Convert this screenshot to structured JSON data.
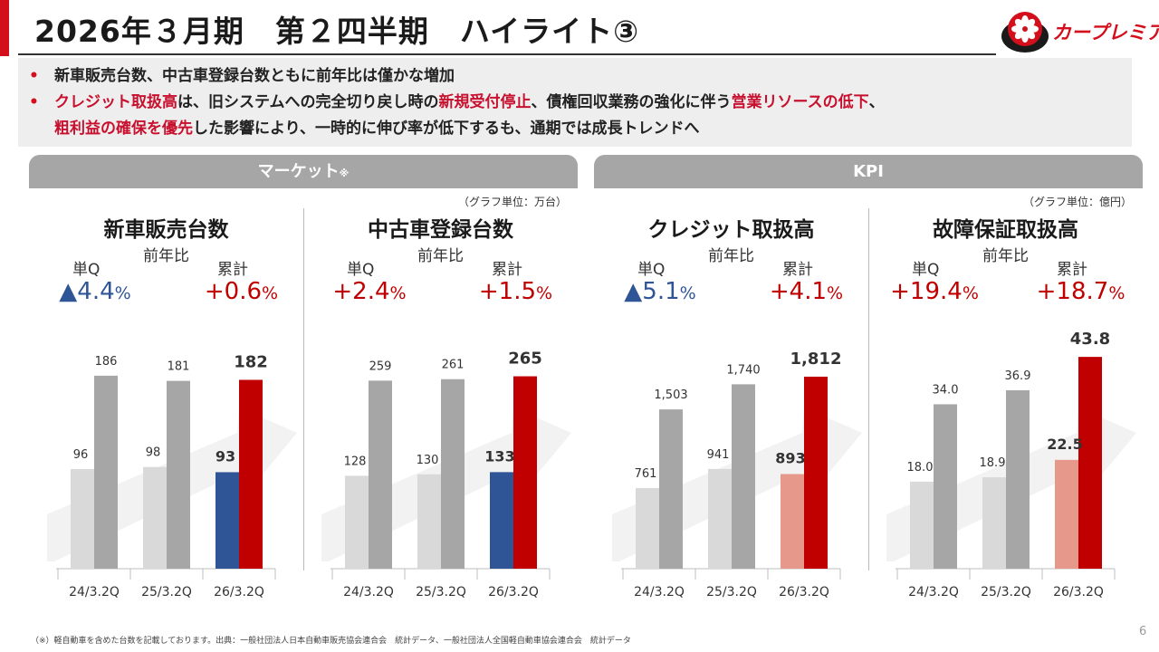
{
  "title": "2026年３月期　第２四半期　ハイライト③",
  "logo_text": "カープレミア",
  "colors": {
    "accent": "#d40f1c",
    "prior": "#d9d9d9",
    "prior_cum": "#a6a6a6",
    "q_market": "#2f5597",
    "q_kpi": "#e6998a",
    "cum_current": "#c00000"
  },
  "bullets": [
    {
      "text": "新車販売台数、中古車登録台数ともに前年比は僅かな増加"
    },
    {
      "parts": [
        {
          "text": "クレジット取扱高",
          "red": true
        },
        {
          "text": "は、旧システムへの完全切り戻し時の"
        },
        {
          "text": "新規受付停止",
          "red": true
        },
        {
          "text": "、債権回収業務の強化に伴う"
        },
        {
          "text": "営業リソースの低下",
          "red": true
        },
        {
          "text": "、"
        }
      ],
      "parts2": [
        {
          "text": "粗利益の確保を優先",
          "red": true
        },
        {
          "text": "した影響により、一時的に伸び率が低下するも、通期では成長トレンドへ"
        }
      ]
    }
  ],
  "panels": {
    "market": {
      "header": "マーケット",
      "header_mark": "※",
      "unit_note": "（グラフ単位：万台）"
    },
    "kpi": {
      "header": "KPI",
      "unit_note": "（グラフ単位：億円）"
    }
  },
  "labels": {
    "yoy": "前年比",
    "quarter": "単Q",
    "cumulative": "累計"
  },
  "chart_data": [
    {
      "type": "bar",
      "title": "新車販売台数",
      "panel": "market",
      "categories": [
        "24/3.2Q",
        "25/3.2Q",
        "26/3.2Q"
      ],
      "series": [
        {
          "name": "単Q",
          "values": [
            96,
            98,
            93
          ],
          "labels": [
            "96",
            "98",
            "93"
          ]
        },
        {
          "name": "累計",
          "values": [
            186,
            181,
            182
          ],
          "labels": [
            "186",
            "181",
            "182"
          ]
        }
      ],
      "yoy_quarter": {
        "sign": "▲",
        "number": "4.4",
        "unit": "%",
        "tone": "blue"
      },
      "yoy_cumulative": {
        "sign": "+",
        "number": "0.6",
        "unit": "%",
        "tone": "red"
      },
      "ylim": [
        0,
        240
      ]
    },
    {
      "type": "bar",
      "title": "中古車登録台数",
      "panel": "market",
      "categories": [
        "24/3.2Q",
        "25/3.2Q",
        "26/3.2Q"
      ],
      "series": [
        {
          "name": "単Q",
          "values": [
            128,
            130,
            133
          ],
          "labels": [
            "128",
            "130",
            "133"
          ]
        },
        {
          "name": "累計",
          "values": [
            259,
            261,
            265
          ],
          "labels": [
            "259",
            "261",
            "265"
          ]
        }
      ],
      "yoy_quarter": {
        "sign": "+",
        "number": "2.4",
        "unit": "%",
        "tone": "red"
      },
      "yoy_cumulative": {
        "sign": "+",
        "number": "1.5",
        "unit": "%",
        "tone": "red"
      },
      "ylim": [
        0,
        343
      ]
    },
    {
      "type": "bar",
      "title": "クレジット取扱高",
      "panel": "kpi",
      "categories": [
        "24/3.2Q",
        "25/3.2Q",
        "26/3.2Q"
      ],
      "series": [
        {
          "name": "単Q",
          "values": [
            761,
            941,
            893
          ],
          "labels": [
            "761",
            "941",
            "893"
          ]
        },
        {
          "name": "累計",
          "values": [
            1503,
            1740,
            1812
          ],
          "labels": [
            "1,503",
            "1,740",
            "1,812"
          ]
        }
      ],
      "yoy_quarter": {
        "sign": "▲",
        "number": "5.1",
        "unit": "%",
        "tone": "blue"
      },
      "yoy_cumulative": {
        "sign": "+",
        "number": "4.1",
        "unit": "%",
        "tone": "red"
      },
      "ylim": [
        0,
        2350
      ]
    },
    {
      "type": "bar",
      "title": "故障保証取扱高",
      "panel": "kpi",
      "categories": [
        "24/3.2Q",
        "25/3.2Q",
        "26/3.2Q"
      ],
      "series": [
        {
          "name": "単Q",
          "values": [
            18.0,
            18.9,
            22.5
          ],
          "labels": [
            "18.0",
            "18.9",
            "22.5"
          ]
        },
        {
          "name": "累計",
          "values": [
            34.0,
            36.9,
            43.8
          ],
          "labels": [
            "34.0",
            "36.9",
            "43.8"
          ]
        }
      ],
      "yoy_quarter": {
        "sign": "+",
        "number": "19.4",
        "unit": "%",
        "tone": "red"
      },
      "yoy_cumulative": {
        "sign": "+",
        "number": "18.7",
        "unit": "%",
        "tone": "red"
      },
      "ylim": [
        0,
        51.5
      ]
    }
  ],
  "footnote": "（※）軽自動車を含めた台数を記載しております。出典：一般社団法人日本自動車販売協会連合会　統計データ、一般社団法人全国軽自動車協会連合会　統計データ",
  "page_number": "6"
}
